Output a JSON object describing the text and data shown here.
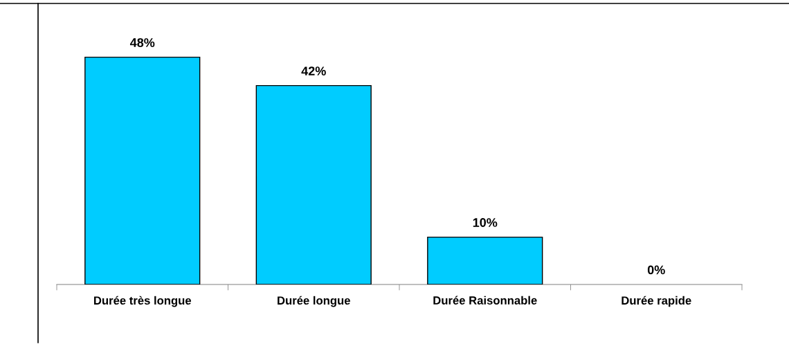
{
  "chart_data": {
    "type": "bar",
    "categories": [
      "Durée très longue",
      "Durée longue",
      "Durée Raisonnable",
      "Durée rapide"
    ],
    "values": [
      48,
      42,
      10,
      0
    ],
    "value_labels": [
      "48%",
      "42%",
      "10%",
      "0%"
    ],
    "color": "#00ccff",
    "grid": false,
    "legend": false
  }
}
